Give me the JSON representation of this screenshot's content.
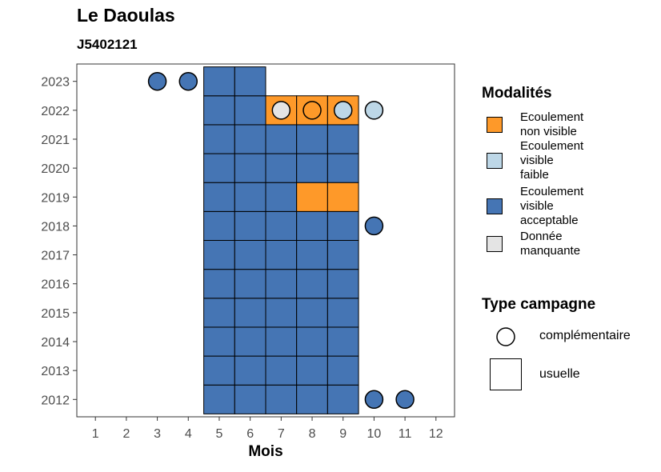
{
  "chart_data": {
    "type": "heatmap",
    "title": "Le Daoulas",
    "subtitle": "J5402121",
    "xlabel": "Mois",
    "ylabel": "",
    "x_categories": [
      "1",
      "2",
      "3",
      "4",
      "5",
      "6",
      "7",
      "8",
      "9",
      "10",
      "11",
      "12"
    ],
    "y_categories": [
      "2012",
      "2013",
      "2014",
      "2015",
      "2016",
      "2017",
      "2018",
      "2019",
      "2020",
      "2021",
      "2022",
      "2023"
    ],
    "colors": {
      "Ecoulement non visible": "#fe9929",
      "Ecoulement visible faible": "#bdd7e7",
      "Ecoulement visible acceptable": "#4575b4",
      "Donnée manquante": "#e4e4e4"
    },
    "usual_cells": [
      {
        "year": "2012",
        "month": 5,
        "status": "Ecoulement visible acceptable"
      },
      {
        "year": "2012",
        "month": 6,
        "status": "Ecoulement visible acceptable"
      },
      {
        "year": "2012",
        "month": 7,
        "status": "Ecoulement visible acceptable"
      },
      {
        "year": "2012",
        "month": 8,
        "status": "Ecoulement visible acceptable"
      },
      {
        "year": "2012",
        "month": 9,
        "status": "Ecoulement visible acceptable"
      },
      {
        "year": "2013",
        "month": 5,
        "status": "Ecoulement visible acceptable"
      },
      {
        "year": "2013",
        "month": 6,
        "status": "Ecoulement visible acceptable"
      },
      {
        "year": "2013",
        "month": 7,
        "status": "Ecoulement visible acceptable"
      },
      {
        "year": "2013",
        "month": 8,
        "status": "Ecoulement visible acceptable"
      },
      {
        "year": "2013",
        "month": 9,
        "status": "Ecoulement visible acceptable"
      },
      {
        "year": "2014",
        "month": 5,
        "status": "Ecoulement visible acceptable"
      },
      {
        "year": "2014",
        "month": 6,
        "status": "Ecoulement visible acceptable"
      },
      {
        "year": "2014",
        "month": 7,
        "status": "Ecoulement visible acceptable"
      },
      {
        "year": "2014",
        "month": 8,
        "status": "Ecoulement visible acceptable"
      },
      {
        "year": "2014",
        "month": 9,
        "status": "Ecoulement visible acceptable"
      },
      {
        "year": "2015",
        "month": 5,
        "status": "Ecoulement visible acceptable"
      },
      {
        "year": "2015",
        "month": 6,
        "status": "Ecoulement visible acceptable"
      },
      {
        "year": "2015",
        "month": 7,
        "status": "Ecoulement visible acceptable"
      },
      {
        "year": "2015",
        "month": 8,
        "status": "Ecoulement visible acceptable"
      },
      {
        "year": "2015",
        "month": 9,
        "status": "Ecoulement visible acceptable"
      },
      {
        "year": "2016",
        "month": 5,
        "status": "Ecoulement visible acceptable"
      },
      {
        "year": "2016",
        "month": 6,
        "status": "Ecoulement visible acceptable"
      },
      {
        "year": "2016",
        "month": 7,
        "status": "Ecoulement visible acceptable"
      },
      {
        "year": "2016",
        "month": 8,
        "status": "Ecoulement visible acceptable"
      },
      {
        "year": "2016",
        "month": 9,
        "status": "Ecoulement visible acceptable"
      },
      {
        "year": "2017",
        "month": 5,
        "status": "Ecoulement visible acceptable"
      },
      {
        "year": "2017",
        "month": 6,
        "status": "Ecoulement visible acceptable"
      },
      {
        "year": "2017",
        "month": 7,
        "status": "Ecoulement visible acceptable"
      },
      {
        "year": "2017",
        "month": 8,
        "status": "Ecoulement visible acceptable"
      },
      {
        "year": "2017",
        "month": 9,
        "status": "Ecoulement visible acceptable"
      },
      {
        "year": "2018",
        "month": 5,
        "status": "Ecoulement visible acceptable"
      },
      {
        "year": "2018",
        "month": 6,
        "status": "Ecoulement visible acceptable"
      },
      {
        "year": "2018",
        "month": 7,
        "status": "Ecoulement visible acceptable"
      },
      {
        "year": "2018",
        "month": 8,
        "status": "Ecoulement visible acceptable"
      },
      {
        "year": "2018",
        "month": 9,
        "status": "Ecoulement visible acceptable"
      },
      {
        "year": "2019",
        "month": 5,
        "status": "Ecoulement visible acceptable"
      },
      {
        "year": "2019",
        "month": 6,
        "status": "Ecoulement visible acceptable"
      },
      {
        "year": "2019",
        "month": 7,
        "status": "Ecoulement visible acceptable"
      },
      {
        "year": "2019",
        "month": 8,
        "status": "Ecoulement non visible"
      },
      {
        "year": "2019",
        "month": 9,
        "status": "Ecoulement non visible"
      },
      {
        "year": "2020",
        "month": 5,
        "status": "Ecoulement visible acceptable"
      },
      {
        "year": "2020",
        "month": 6,
        "status": "Ecoulement visible acceptable"
      },
      {
        "year": "2020",
        "month": 7,
        "status": "Ecoulement visible acceptable"
      },
      {
        "year": "2020",
        "month": 8,
        "status": "Ecoulement visible acceptable"
      },
      {
        "year": "2020",
        "month": 9,
        "status": "Ecoulement visible acceptable"
      },
      {
        "year": "2021",
        "month": 5,
        "status": "Ecoulement visible acceptable"
      },
      {
        "year": "2021",
        "month": 6,
        "status": "Ecoulement visible acceptable"
      },
      {
        "year": "2021",
        "month": 7,
        "status": "Ecoulement visible acceptable"
      },
      {
        "year": "2021",
        "month": 8,
        "status": "Ecoulement visible acceptable"
      },
      {
        "year": "2021",
        "month": 9,
        "status": "Ecoulement visible acceptable"
      },
      {
        "year": "2022",
        "month": 5,
        "status": "Ecoulement visible acceptable"
      },
      {
        "year": "2022",
        "month": 6,
        "status": "Ecoulement visible acceptable"
      },
      {
        "year": "2022",
        "month": 7,
        "status": "Ecoulement non visible"
      },
      {
        "year": "2022",
        "month": 8,
        "status": "Ecoulement non visible"
      },
      {
        "year": "2022",
        "month": 9,
        "status": "Ecoulement non visible"
      },
      {
        "year": "2023",
        "month": 5,
        "status": "Ecoulement visible acceptable"
      },
      {
        "year": "2023",
        "month": 6,
        "status": "Ecoulement visible acceptable"
      }
    ],
    "complementary_points": [
      {
        "year": "2023",
        "month": 3,
        "status": "Ecoulement visible acceptable"
      },
      {
        "year": "2023",
        "month": 4,
        "status": "Ecoulement visible acceptable"
      },
      {
        "year": "2022",
        "month": 7,
        "status": "Donnée manquante"
      },
      {
        "year": "2022",
        "month": 8,
        "status": "Ecoulement non visible"
      },
      {
        "year": "2022",
        "month": 9,
        "status": "Ecoulement visible faible"
      },
      {
        "year": "2022",
        "month": 10,
        "status": "Ecoulement visible faible"
      },
      {
        "year": "2018",
        "month": 10,
        "status": "Ecoulement visible acceptable"
      },
      {
        "year": "2012",
        "month": 10,
        "status": "Ecoulement visible acceptable"
      },
      {
        "year": "2012",
        "month": 11,
        "status": "Ecoulement visible acceptable"
      }
    ],
    "legend_placement": "right",
    "grid": false
  },
  "legend": {
    "modalites_title": "Modalités",
    "modalites": [
      {
        "lines": [
          "Ecoulement",
          "non visible"
        ],
        "color": "#fe9929"
      },
      {
        "lines": [
          "Ecoulement",
          "visible",
          "faible"
        ],
        "color": "#bdd7e7"
      },
      {
        "lines": [
          "Ecoulement",
          "visible",
          "acceptable"
        ],
        "color": "#4575b4"
      },
      {
        "lines": [
          "Donnée",
          "manquante"
        ],
        "color": "#e4e4e4"
      }
    ],
    "campagne_title": "Type campagne",
    "campagne": [
      {
        "label": "complémentaire",
        "shape": "circle"
      },
      {
        "label": "usuelle",
        "shape": "square"
      }
    ]
  }
}
